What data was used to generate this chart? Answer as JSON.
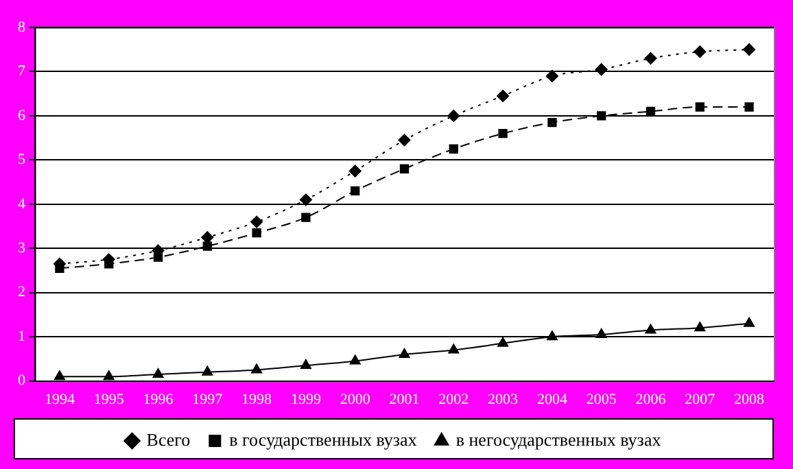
{
  "chart_data": {
    "type": "line",
    "categories": [
      "1994",
      "1995",
      "1996",
      "1997",
      "1998",
      "1999",
      "2000",
      "2001",
      "2002",
      "2003",
      "2004",
      "2005",
      "2006",
      "2007",
      "2008"
    ],
    "series": [
      {
        "name": "Всего",
        "color": "#000000",
        "marker": "diamond",
        "line_style": "dotted",
        "values": [
          2.65,
          2.75,
          2.95,
          3.25,
          3.6,
          4.1,
          4.75,
          5.45,
          6.0,
          6.45,
          6.9,
          7.05,
          7.3,
          7.45,
          7.5
        ]
      },
      {
        "name": "в государственных вузах",
        "color": "#000000",
        "marker": "square",
        "line_style": "dashed",
        "values": [
          2.55,
          2.65,
          2.8,
          3.05,
          3.35,
          3.7,
          4.3,
          4.8,
          5.25,
          5.6,
          5.85,
          6.0,
          6.1,
          6.2,
          6.2
        ]
      },
      {
        "name": "в негосударственных вузах",
        "color": "#000000",
        "marker": "triangle",
        "line_style": "solid",
        "values": [
          0.1,
          0.1,
          0.15,
          0.2,
          0.25,
          0.35,
          0.45,
          0.6,
          0.7,
          0.85,
          1.0,
          1.05,
          1.15,
          1.2,
          1.3
        ]
      }
    ],
    "ylim": [
      0,
      8
    ],
    "yticks": [
      0,
      1,
      2,
      3,
      4,
      5,
      6,
      7,
      8
    ],
    "grid": "y",
    "legend": "bottom"
  }
}
